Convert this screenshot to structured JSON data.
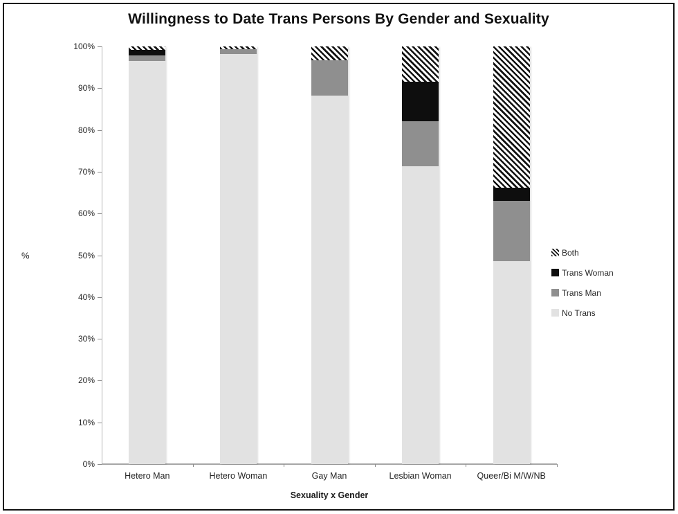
{
  "chart_data": {
    "type": "bar",
    "stacked": true,
    "title": "Willingness to Date Trans Persons By Gender and Sexuality",
    "xlabel": "Sexuality x Gender",
    "ylabel": "%",
    "ylim": [
      0,
      100
    ],
    "ytick_step": 10,
    "ytick_suffix": "%",
    "grid": false,
    "legend_position": "right",
    "categories": [
      "Hetero Man",
      "Hetero Woman",
      "Gay Man",
      "Lesbian Woman",
      "Queer/Bi M/W/NB"
    ],
    "series": [
      {
        "name": "No Trans",
        "fill": "solid",
        "color": "#e2e2e2",
        "values": [
          96.6,
          98.2,
          88.2,
          71.3,
          48.6
        ]
      },
      {
        "name": "Trans Man",
        "fill": "solid",
        "color": "#8f8f8f",
        "values": [
          1.3,
          1.2,
          8.5,
          10.8,
          14.4
        ]
      },
      {
        "name": "Trans Woman",
        "fill": "solid",
        "color": "#0e0e0e",
        "values": [
          1.3,
          0,
          0,
          9.4,
          3.1
        ]
      },
      {
        "name": "Both",
        "fill": "hatch",
        "color": "#111111",
        "hatch_bg": "#ffffff",
        "values": [
          0.8,
          0.6,
          3.3,
          8.5,
          33.9
        ]
      }
    ],
    "legend_order": [
      "Both",
      "Trans Woman",
      "Trans Man",
      "No Trans"
    ]
  }
}
